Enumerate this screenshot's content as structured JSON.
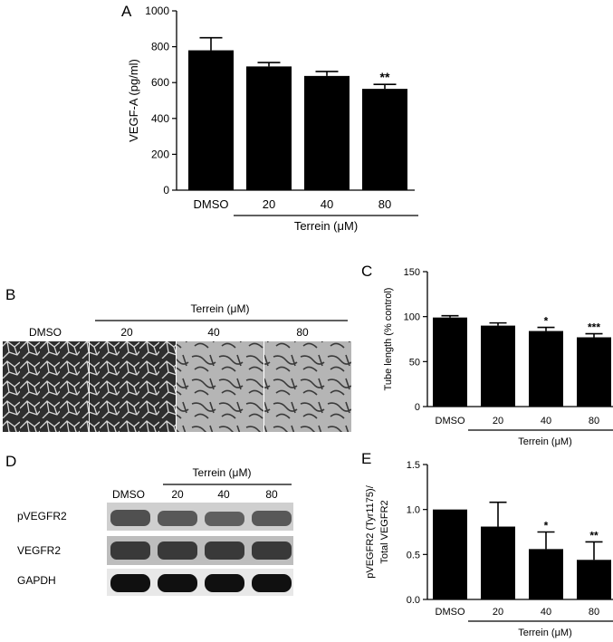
{
  "panels": {
    "a": {
      "letter": "A"
    },
    "b": {
      "letter": "B",
      "treatment": "Terrein (μM)",
      "images": [
        "DMSO",
        "20",
        "40",
        "80"
      ]
    },
    "c": {
      "letter": "C"
    },
    "d": {
      "letter": "D",
      "treatment": "Terrein (μM)",
      "lanes": [
        "DMSO",
        "20",
        "40",
        "80"
      ],
      "bands": [
        "pVEGFR2",
        "VEGFR2",
        "GAPDH"
      ]
    },
    "e": {
      "letter": "E"
    }
  },
  "chart_data": [
    {
      "panel": "A",
      "type": "bar",
      "categories": [
        "DMSO",
        "20",
        "40",
        "80"
      ],
      "values": [
        780,
        690,
        637,
        565
      ],
      "errors": [
        70,
        22,
        25,
        25
      ],
      "significance": [
        "",
        "",
        "",
        "**"
      ],
      "xlabel": "Terrein (μM)",
      "ylabel": "VEGF-A (pg/ml)",
      "ylim": [
        0,
        1000
      ],
      "yticks": [
        0,
        200,
        400,
        600,
        800,
        1000
      ]
    },
    {
      "panel": "C",
      "type": "bar",
      "categories": [
        "DMSO",
        "20",
        "40",
        "80"
      ],
      "values": [
        99,
        90,
        84,
        77
      ],
      "errors": [
        2,
        3,
        4,
        4
      ],
      "significance": [
        "",
        "",
        "*",
        "***"
      ],
      "xlabel": "Terrein (μM)",
      "ylabel": "Tube length (% control)",
      "ylim": [
        0,
        150
      ],
      "yticks": [
        0,
        50,
        100,
        150
      ]
    },
    {
      "panel": "E",
      "type": "bar",
      "categories": [
        "DMSO",
        "20",
        "40",
        "80"
      ],
      "values": [
        1.0,
        0.81,
        0.56,
        0.44
      ],
      "errors": [
        0,
        0.27,
        0.19,
        0.2
      ],
      "significance": [
        "",
        "",
        "*",
        "**"
      ],
      "xlabel": "Terrein (μM)",
      "ylabel": [
        "pVEGFR2 (Tyr1175)/",
        "Total VEGFR2"
      ],
      "ylim": [
        0,
        1.5
      ],
      "yticks": [
        "0.0",
        "0.5",
        "1.0",
        "1.5"
      ]
    }
  ]
}
